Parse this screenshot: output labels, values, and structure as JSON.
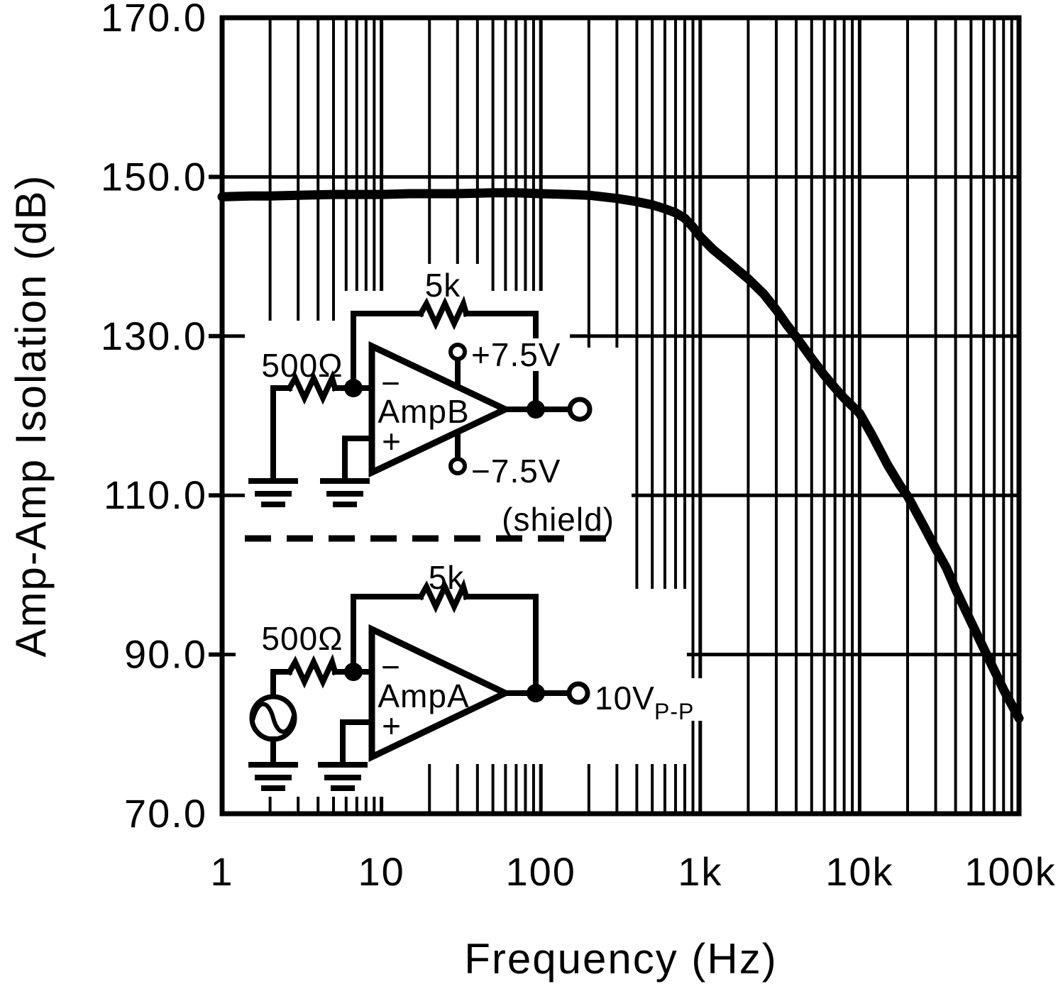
{
  "chart_data": {
    "type": "line",
    "title": "",
    "xlabel": "Frequency (Hz)",
    "ylabel": "Amp-Amp Isolation (dB)",
    "x_scale": "log",
    "xlim": [
      1,
      100000
    ],
    "ylim": [
      70,
      170
    ],
    "x_ticks": [
      {
        "value": 1,
        "label": "1"
      },
      {
        "value": 10,
        "label": "10"
      },
      {
        "value": 100,
        "label": "100"
      },
      {
        "value": 1000,
        "label": "1k"
      },
      {
        "value": 10000,
        "label": "10k"
      },
      {
        "value": 100000,
        "label": "100k"
      }
    ],
    "y_ticks": [
      {
        "value": 170,
        "label": "170.0"
      },
      {
        "value": 150,
        "label": "150.0"
      },
      {
        "value": 130,
        "label": "130.0"
      },
      {
        "value": 110,
        "label": "110.0"
      },
      {
        "value": 90,
        "label": "90.0"
      },
      {
        "value": 70,
        "label": "70.0"
      }
    ],
    "grid": {
      "vertical": "log decades with minor lines 2-9 per decade",
      "horizontal": "major lines every 20 dB (90,110,130,150)"
    },
    "legend": "none",
    "series": [
      {
        "name": "Amp-Amp Isolation",
        "points": [
          [
            1,
            147.5
          ],
          [
            1.5,
            147.6
          ],
          [
            2,
            147.6
          ],
          [
            3,
            147.7
          ],
          [
            5,
            147.8
          ],
          [
            7,
            147.8
          ],
          [
            10,
            147.8
          ],
          [
            15,
            147.9
          ],
          [
            20,
            147.9
          ],
          [
            30,
            147.9
          ],
          [
            50,
            148.0
          ],
          [
            70,
            148.0
          ],
          [
            100,
            147.9
          ],
          [
            150,
            147.8
          ],
          [
            200,
            147.7
          ],
          [
            300,
            147.3
          ],
          [
            400,
            146.9
          ],
          [
            500,
            146.5
          ],
          [
            600,
            146.0
          ],
          [
            700,
            145.5
          ],
          [
            800,
            144.8
          ],
          [
            900,
            143.7
          ],
          [
            1000,
            142.5
          ],
          [
            1200,
            140.9
          ],
          [
            1500,
            139.3
          ],
          [
            2000,
            137.2
          ],
          [
            2500,
            135.3
          ],
          [
            3000,
            133.3
          ],
          [
            3500,
            131.4
          ],
          [
            4000,
            129.9
          ],
          [
            5000,
            127.2
          ],
          [
            6000,
            125.1
          ],
          [
            7000,
            123.5
          ],
          [
            8000,
            122.2
          ],
          [
            9000,
            121.2
          ],
          [
            10000,
            120.3
          ],
          [
            12000,
            117.5
          ],
          [
            15000,
            113.8
          ],
          [
            18000,
            111.2
          ],
          [
            20000,
            109.9
          ],
          [
            25000,
            106.3
          ],
          [
            30000,
            103.3
          ],
          [
            35000,
            100.9
          ],
          [
            40000,
            98.2
          ],
          [
            50000,
            94.1
          ],
          [
            63000,
            89.9
          ],
          [
            80000,
            85.6
          ],
          [
            100000,
            82.0
          ]
        ]
      }
    ]
  },
  "circuit": {
    "shield_label": "(shield)",
    "amp_b": {
      "name": "AmpB",
      "minus": "−",
      "plus": "+",
      "feedback_resistor": "5k",
      "input_resistor": "500Ω",
      "positive_supply": "+7.5V",
      "negative_supply": "−7.5V"
    },
    "amp_a": {
      "name": "AmpA",
      "minus": "−",
      "plus": "+",
      "feedback_resistor": "5k",
      "input_resistor": "500Ω",
      "output_level": "10V",
      "output_level_subscript": "P-P"
    }
  },
  "colors": {
    "ink": "#000000",
    "paper": "#ffffff"
  }
}
